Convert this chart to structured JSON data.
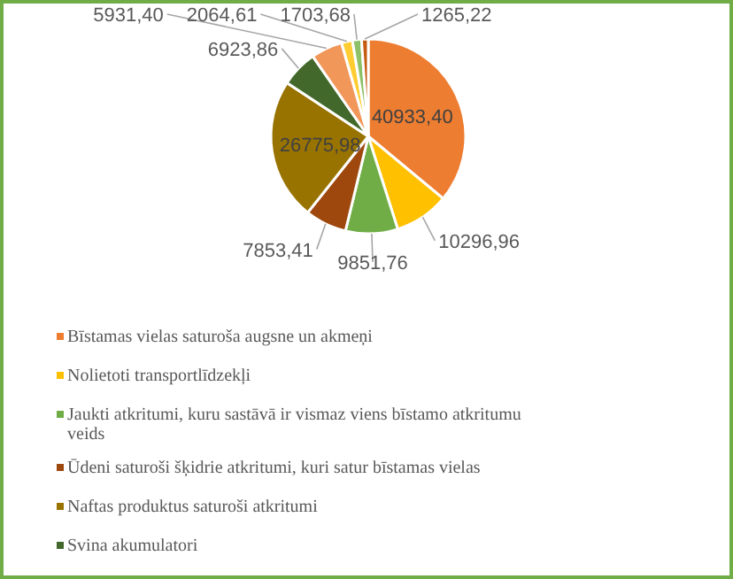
{
  "chart_data": {
    "type": "pie",
    "categories": [
      "Bīstamas vielas saturoša augsne un akmeņi",
      "Nolietoti transportlīdzekļi",
      "Jaukti atkritumi, kuru sastāvā ir vismaz viens bīstamo atkritumu veids",
      "Ūdeni saturoši šķidrie atkritumi, kuri satur bīstamas vielas",
      "Naftas produktus saturoši atkritumi",
      "Svina akumulatori",
      null,
      null,
      null,
      null
    ],
    "values": [
      40933.4,
      10296.96,
      9851.76,
      7853.41,
      26775.98,
      6923.86,
      5931.4,
      2064.61,
      1703.68,
      1265.22
    ],
    "colors": [
      "#ed7d31",
      "#ffc000",
      "#70ad47",
      "#9e480e",
      "#997300",
      "#43682b",
      "#f1975a",
      "#ffcd33",
      "#8cc168",
      "#c55a11"
    ],
    "value_labels": [
      "40933,40",
      "10296,96",
      "9851,76",
      "7853,41",
      "26775,98",
      "6923,86",
      "5931,40",
      "2064,61",
      "1703,68",
      "1265,22"
    ],
    "legend": "bottom"
  }
}
